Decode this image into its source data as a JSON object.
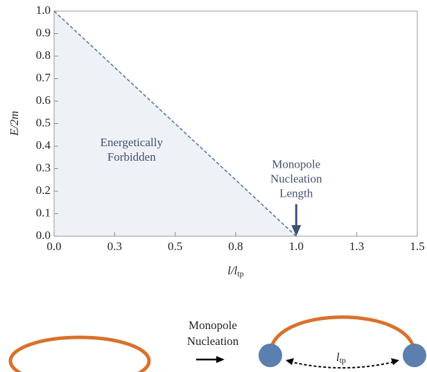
{
  "chart_data": {
    "type": "line",
    "x_label": [
      "l/l",
      "tp"
    ],
    "y_label": "E/2m",
    "series": [
      {
        "x": [
          0,
          1
        ],
        "values": [
          1,
          0
        ],
        "color": "#5577aa",
        "dashed": true,
        "fill": "#eef1f6"
      }
    ],
    "xlim": [
      0,
      1.5
    ],
    "ylim": [
      0,
      1
    ],
    "xticks": [
      {
        "value": 0,
        "label": "0.0"
      },
      {
        "value": 0.25,
        "label": "0.3"
      },
      {
        "value": 0.5,
        "label": "0.5"
      },
      {
        "value": 0.75,
        "label": "0.8"
      },
      {
        "value": 1,
        "label": "1.0"
      },
      {
        "value": 1.25,
        "label": "1.3"
      },
      {
        "value": 1.5,
        "label": "1.5"
      }
    ],
    "yticks": [
      {
        "value": 0,
        "label": "0.0"
      },
      0.1,
      0.2,
      0.3,
      0.4,
      0.5,
      0.6,
      0.7,
      0.8,
      0.9,
      {
        "value": 1,
        "label": "1.0"
      }
    ],
    "annotations": [
      {
        "lines": [
          "Energetically",
          "Forbidden"
        ],
        "x": 0.32,
        "y": 0.38
      },
      {
        "lines": [
          "Monopole",
          "Nucleation",
          "Length"
        ],
        "x": 1.0,
        "y": 0.25,
        "arrow_to": 0
      }
    ]
  },
  "diagram": {
    "process": [
      "Monopole",
      "Nucleation"
    ],
    "length_label": [
      "l",
      "tp"
    ]
  }
}
